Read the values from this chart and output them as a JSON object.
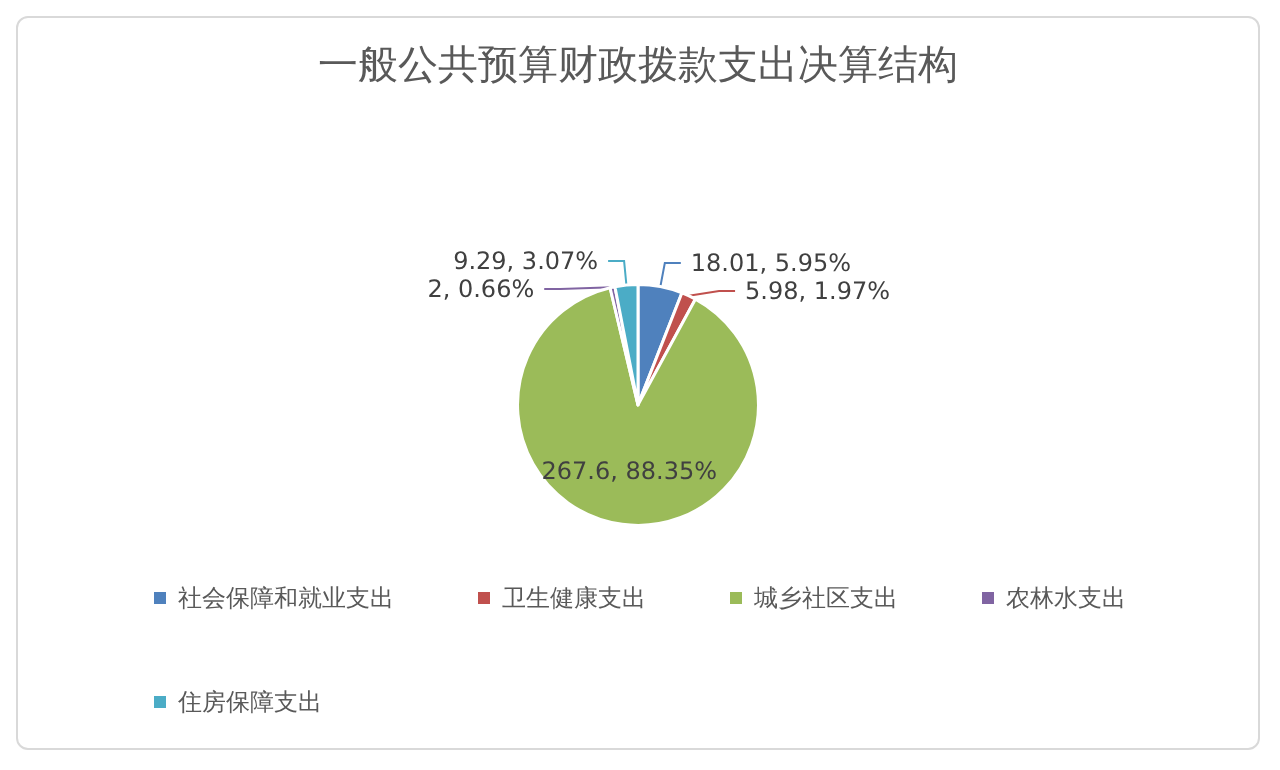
{
  "chart_data": {
    "type": "pie",
    "title": "一般公共预算财政拨款支出决算结构",
    "categories": [
      "社会保障和就业支出",
      "卫生健康支出",
      "城乡社区支出",
      "农林水支出",
      "住房保障支出"
    ],
    "values": [
      18.01,
      5.98,
      267.6,
      2,
      9.29
    ],
    "colors": [
      "#4f81bd",
      "#c0504d",
      "#9bbb59",
      "#8064a2",
      "#4bacc6"
    ],
    "value_labels": [
      "18.01, 5.95%",
      "5.98, 1.97%",
      "267.6, 88.35%",
      "2, 0.66%",
      "9.29, 3.07%"
    ],
    "legend": "bottom"
  }
}
